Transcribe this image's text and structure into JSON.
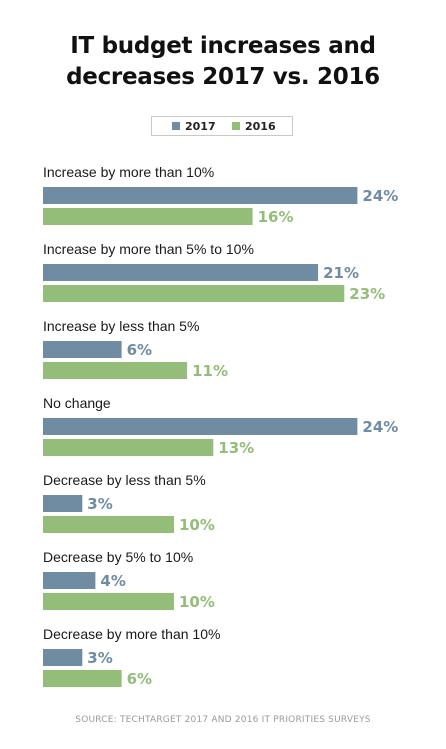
{
  "title_line1": "IT budget increases and",
  "title_line2": "decreases 2017 vs. 2016",
  "source": "SOURCE: TECHTARGET 2017 AND 2016 IT PRIORITIES SURVEYS",
  "colors": {
    "series_2017": "#6f8ca3",
    "series_2016": "#93bd78"
  },
  "chart_data": {
    "type": "bar",
    "orientation": "horizontal",
    "title": "IT budget increases and decreases 2017 vs. 2016",
    "categories": [
      "Increase by more than 10%",
      "Increase by more than 5% to 10%",
      "Increase by less than 5%",
      "No change",
      "Decrease by less than 5%",
      "Decrease by 5% to 10%",
      "Decrease by more than 10%"
    ],
    "series": [
      {
        "name": "2017",
        "values": [
          24,
          21,
          6,
          24,
          3,
          4,
          3
        ]
      },
      {
        "name": "2016",
        "values": [
          16,
          23,
          11,
          13,
          10,
          10,
          6
        ]
      }
    ],
    "data_labels": [
      [
        "24%",
        "21%",
        "6%",
        "24%",
        "3%",
        "4%",
        "3%"
      ],
      [
        "16%",
        "23%",
        "11%",
        "13%",
        "10%",
        "10%",
        "6%"
      ]
    ],
    "unit": "%",
    "legend_position": "top-center",
    "grid": false
  }
}
